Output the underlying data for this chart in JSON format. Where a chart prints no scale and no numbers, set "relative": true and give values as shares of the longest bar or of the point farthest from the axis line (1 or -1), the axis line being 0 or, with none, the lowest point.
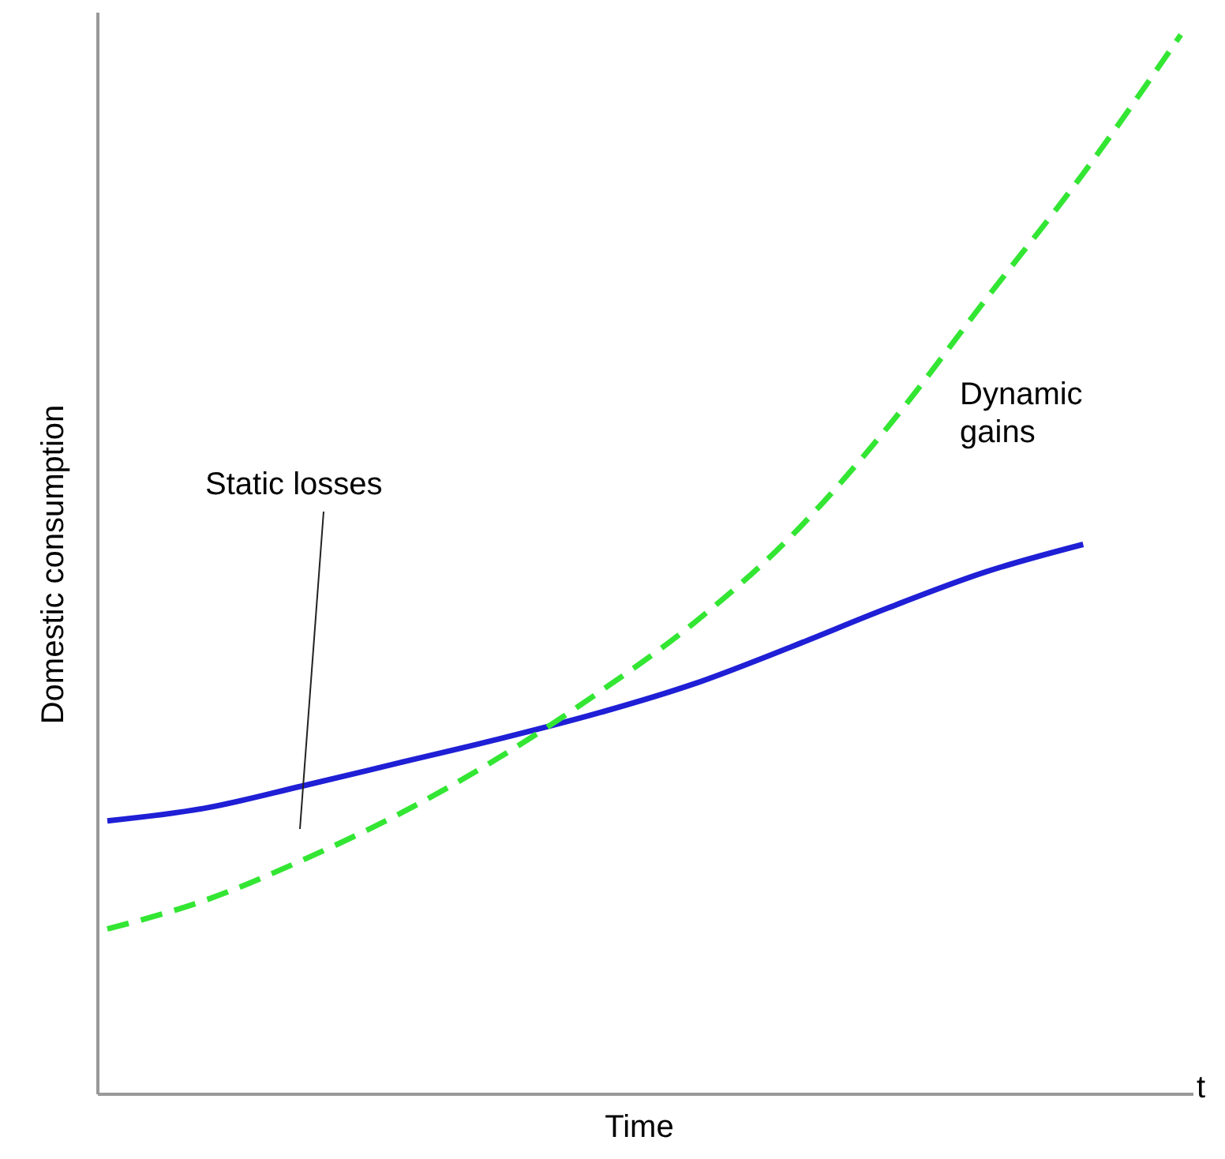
{
  "chart_data": {
    "type": "line",
    "relative": true,
    "xlabel": "Time",
    "ylabel": "Domestic consumption",
    "marker": "none",
    "categories": [
      null,
      null,
      null,
      null,
      null,
      null,
      null,
      null,
      null,
      null,
      null,
      null
    ],
    "series": [
      {
        "color": "#1f1fd6",
        "line_style": "solid",
        "values": [
          0.258,
          0.27,
          0.291,
          0.313,
          0.335,
          0.359,
          0.387,
          0.422,
          0.459,
          0.493,
          0.519,
          null
        ]
      },
      {
        "color": "#33e633",
        "line_style": "dashed",
        "values": [
          0.156,
          0.183,
          0.221,
          0.265,
          0.317,
          0.377,
          0.444,
          0.526,
          0.63,
          0.75,
          0.869,
          1.0
        ]
      }
    ],
    "annotations": [
      "Static losses",
      "Dynamic gains",
      "t"
    ]
  }
}
